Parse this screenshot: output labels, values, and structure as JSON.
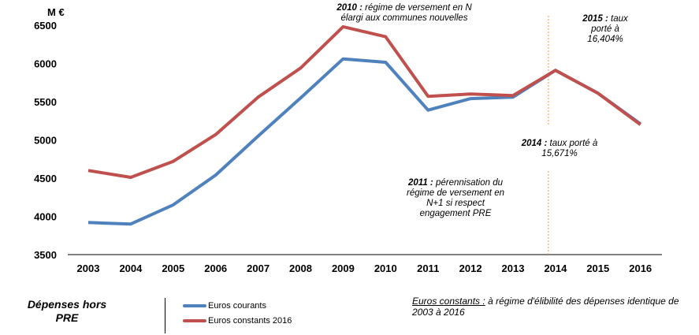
{
  "chart_data": {
    "type": "line",
    "title": "",
    "ylabel": "M €",
    "ylim": [
      3500,
      6500
    ],
    "yticks": [
      3500,
      4000,
      4500,
      5000,
      5500,
      6000,
      6500
    ],
    "categories": [
      "2003",
      "2004",
      "2005",
      "2006",
      "2007",
      "2008",
      "2009",
      "2010",
      "2011",
      "2012",
      "2013",
      "2014",
      "2015",
      "2016"
    ],
    "series": [
      {
        "name": "Euros courants",
        "color": "#4F81BD",
        "values": [
          3920,
          3900,
          4150,
          4540,
          5050,
          5550,
          6060,
          6015,
          5390,
          5540,
          5560,
          5910,
          5610,
          5210
        ]
      },
      {
        "name": "Euros constants 2016",
        "color": "#C0504D",
        "values": [
          4600,
          4510,
          4720,
          5070,
          5560,
          5940,
          6480,
          6350,
          5570,
          5600,
          5580,
          5910,
          5610,
          5200
        ]
      }
    ],
    "marker_line": {
      "category": "2014",
      "color": "#F79646"
    },
    "annotations": [
      {
        "bold": "2010 :",
        "text": "régime de versement en N élargi aux communes nouvelles"
      },
      {
        "bold": "2011 :",
        "text": "pérennisation du régime de versement en N+1 si respect engagement PRE"
      },
      {
        "bold": "2014 :",
        "text": "taux porté à 15,671%"
      },
      {
        "bold": "2015 :",
        "text": "taux porté à 16,404%"
      }
    ]
  },
  "legend": {
    "title": "Dépenses hors PRE"
  },
  "note": {
    "label": "Euros constants :",
    "text": "à régime d'élibilité des dépenses identique de 2003 à 2016"
  }
}
